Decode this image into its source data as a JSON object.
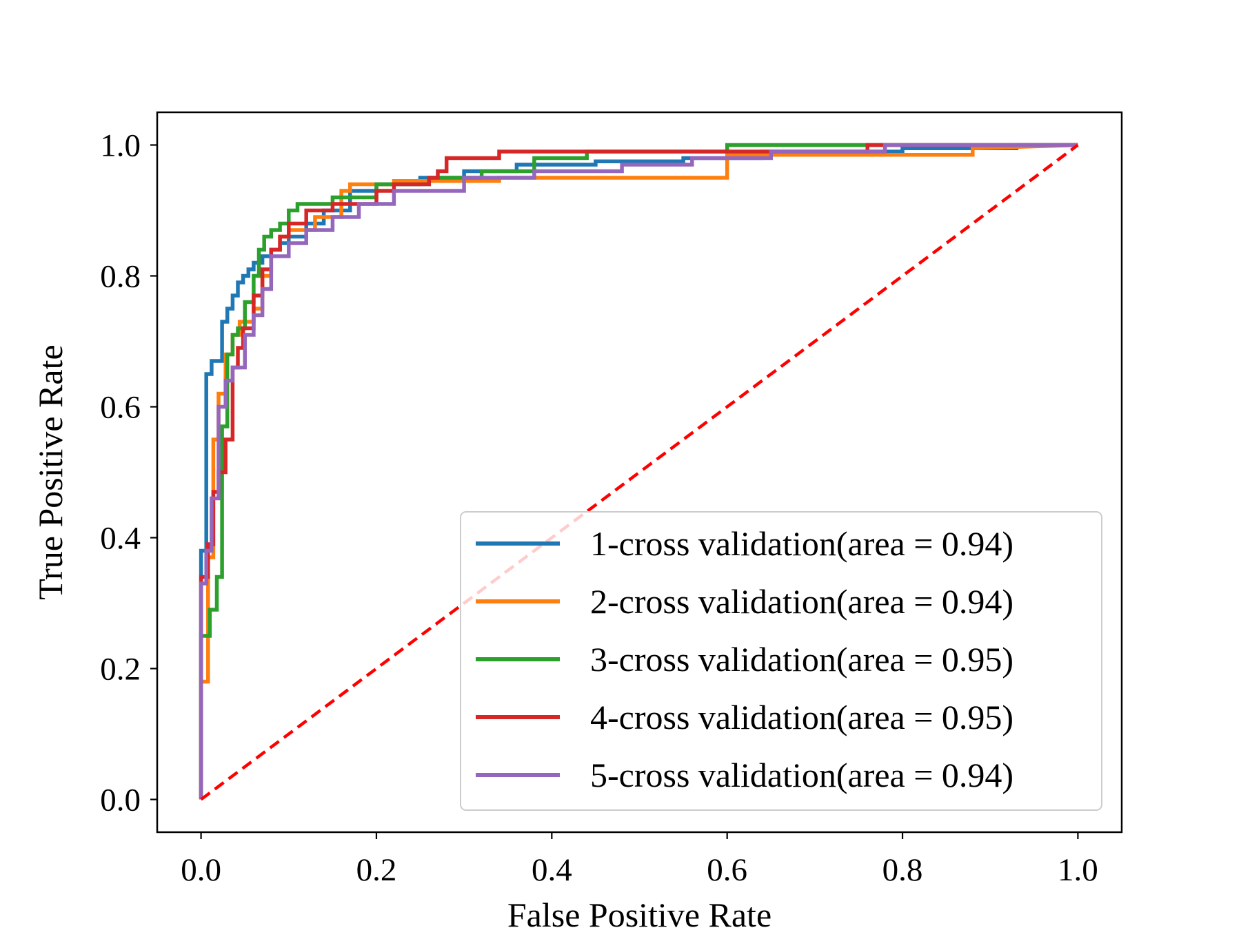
{
  "chart_data": {
    "type": "line",
    "title": "",
    "xlabel": "False Positive Rate",
    "ylabel": "True Positive Rate",
    "xlim": [
      -0.05,
      1.05
    ],
    "ylim": [
      -0.05,
      1.05
    ],
    "xticks": [
      "0.0",
      "0.2",
      "0.4",
      "0.6",
      "0.8",
      "1.0"
    ],
    "yticks": [
      "0.0",
      "0.2",
      "0.4",
      "0.6",
      "0.8",
      "1.0"
    ],
    "grid": false,
    "legend_position": "lower-right",
    "series": [
      {
        "name": "1-cross validation(area = 0.94)",
        "color": "#1f77b4",
        "x": [
          0,
          0,
          0.006,
          0.006,
          0.012,
          0.012,
          0.024,
          0.024,
          0.03,
          0.03,
          0.036,
          0.036,
          0.042,
          0.042,
          0.048,
          0.048,
          0.054,
          0.054,
          0.06,
          0.06,
          0.07,
          0.07,
          0.08,
          0.08,
          0.09,
          0.09,
          0.1,
          0.1,
          0.12,
          0.12,
          0.14,
          0.14,
          0.17,
          0.17,
          0.2,
          0.2,
          0.25,
          0.25,
          0.3,
          0.3,
          0.36,
          0.36,
          0.45,
          0.45,
          0.55,
          0.55,
          0.64,
          0.64,
          0.8,
          0.8,
          0.93,
          0.93,
          1.0
        ],
        "y": [
          0,
          0.38,
          0.38,
          0.65,
          0.65,
          0.67,
          0.67,
          0.73,
          0.73,
          0.75,
          0.75,
          0.77,
          0.77,
          0.79,
          0.79,
          0.8,
          0.8,
          0.81,
          0.81,
          0.82,
          0.82,
          0.83,
          0.83,
          0.84,
          0.84,
          0.85,
          0.85,
          0.86,
          0.86,
          0.88,
          0.88,
          0.9,
          0.9,
          0.93,
          0.93,
          0.94,
          0.94,
          0.95,
          0.95,
          0.96,
          0.96,
          0.97,
          0.97,
          0.975,
          0.975,
          0.98,
          0.98,
          0.99,
          0.99,
          0.995,
          0.995,
          1.0,
          1.0
        ]
      },
      {
        "name": "2-cross validation(area = 0.94)",
        "color": "#ff7f0e",
        "x": [
          0,
          0,
          0.008,
          0.008,
          0.014,
          0.014,
          0.02,
          0.02,
          0.028,
          0.028,
          0.036,
          0.036,
          0.044,
          0.044,
          0.06,
          0.06,
          0.07,
          0.07,
          0.08,
          0.08,
          0.09,
          0.09,
          0.1,
          0.1,
          0.13,
          0.13,
          0.16,
          0.16,
          0.17,
          0.17,
          0.22,
          0.22,
          0.34,
          0.34,
          0.6,
          0.6,
          0.88,
          0.88,
          1.0
        ],
        "y": [
          0,
          0.18,
          0.18,
          0.37,
          0.37,
          0.55,
          0.55,
          0.62,
          0.62,
          0.68,
          0.68,
          0.71,
          0.71,
          0.73,
          0.73,
          0.75,
          0.75,
          0.8,
          0.8,
          0.84,
          0.84,
          0.86,
          0.86,
          0.87,
          0.87,
          0.89,
          0.89,
          0.93,
          0.93,
          0.94,
          0.94,
          0.945,
          0.945,
          0.95,
          0.95,
          0.985,
          0.985,
          0.995,
          1.0
        ]
      },
      {
        "name": "3-cross validation(area = 0.95)",
        "color": "#2ca02c",
        "x": [
          0,
          0,
          0.01,
          0.01,
          0.018,
          0.018,
          0.024,
          0.024,
          0.03,
          0.03,
          0.036,
          0.036,
          0.042,
          0.042,
          0.05,
          0.05,
          0.06,
          0.06,
          0.066,
          0.066,
          0.072,
          0.072,
          0.08,
          0.08,
          0.09,
          0.09,
          0.1,
          0.1,
          0.11,
          0.11,
          0.15,
          0.15,
          0.2,
          0.2,
          0.26,
          0.26,
          0.32,
          0.32,
          0.38,
          0.38,
          0.44,
          0.44,
          0.6,
          0.6,
          1.0
        ],
        "y": [
          0,
          0.25,
          0.25,
          0.29,
          0.29,
          0.34,
          0.34,
          0.57,
          0.57,
          0.68,
          0.68,
          0.71,
          0.71,
          0.72,
          0.72,
          0.76,
          0.76,
          0.8,
          0.8,
          0.84,
          0.84,
          0.86,
          0.86,
          0.87,
          0.87,
          0.88,
          0.88,
          0.9,
          0.9,
          0.91,
          0.91,
          0.92,
          0.92,
          0.94,
          0.94,
          0.95,
          0.95,
          0.96,
          0.96,
          0.98,
          0.98,
          0.99,
          0.99,
          1.0,
          1.0
        ]
      },
      {
        "name": "4-cross validation(area = 0.95)",
        "color": "#d62728",
        "x": [
          0,
          0,
          0.008,
          0.008,
          0.014,
          0.014,
          0.02,
          0.02,
          0.028,
          0.028,
          0.036,
          0.036,
          0.042,
          0.042,
          0.048,
          0.048,
          0.06,
          0.06,
          0.07,
          0.07,
          0.08,
          0.08,
          0.09,
          0.09,
          0.1,
          0.1,
          0.12,
          0.12,
          0.15,
          0.15,
          0.2,
          0.2,
          0.22,
          0.22,
          0.26,
          0.26,
          0.27,
          0.27,
          0.28,
          0.28,
          0.34,
          0.34,
          0.76,
          0.76,
          1.0
        ],
        "y": [
          0,
          0.34,
          0.34,
          0.39,
          0.39,
          0.47,
          0.47,
          0.5,
          0.5,
          0.55,
          0.55,
          0.66,
          0.66,
          0.69,
          0.69,
          0.72,
          0.72,
          0.77,
          0.77,
          0.81,
          0.81,
          0.84,
          0.84,
          0.86,
          0.86,
          0.88,
          0.88,
          0.9,
          0.9,
          0.91,
          0.91,
          0.93,
          0.93,
          0.94,
          0.94,
          0.95,
          0.95,
          0.96,
          0.96,
          0.98,
          0.98,
          0.99,
          0.99,
          1.0,
          1.0
        ]
      },
      {
        "name": "5-cross validation(area = 0.94)",
        "color": "#9467bd",
        "x": [
          0,
          0,
          0.006,
          0.006,
          0.012,
          0.012,
          0.02,
          0.02,
          0.028,
          0.028,
          0.036,
          0.036,
          0.05,
          0.05,
          0.06,
          0.06,
          0.07,
          0.07,
          0.08,
          0.08,
          0.1,
          0.1,
          0.12,
          0.12,
          0.15,
          0.15,
          0.18,
          0.18,
          0.22,
          0.22,
          0.3,
          0.3,
          0.38,
          0.38,
          0.48,
          0.48,
          0.56,
          0.56,
          0.65,
          0.65,
          0.78,
          0.78,
          1.0
        ],
        "y": [
          0,
          0.33,
          0.33,
          0.38,
          0.38,
          0.46,
          0.46,
          0.6,
          0.6,
          0.64,
          0.64,
          0.66,
          0.66,
          0.71,
          0.71,
          0.74,
          0.74,
          0.78,
          0.78,
          0.83,
          0.83,
          0.85,
          0.85,
          0.87,
          0.87,
          0.89,
          0.89,
          0.91,
          0.91,
          0.93,
          0.93,
          0.95,
          0.95,
          0.96,
          0.96,
          0.97,
          0.97,
          0.98,
          0.98,
          0.99,
          0.99,
          1.0,
          1.0
        ]
      }
    ],
    "reference_line": {
      "style": "dashed",
      "color": "#ff0000",
      "x": [
        0,
        1
      ],
      "y": [
        0,
        1
      ]
    }
  }
}
